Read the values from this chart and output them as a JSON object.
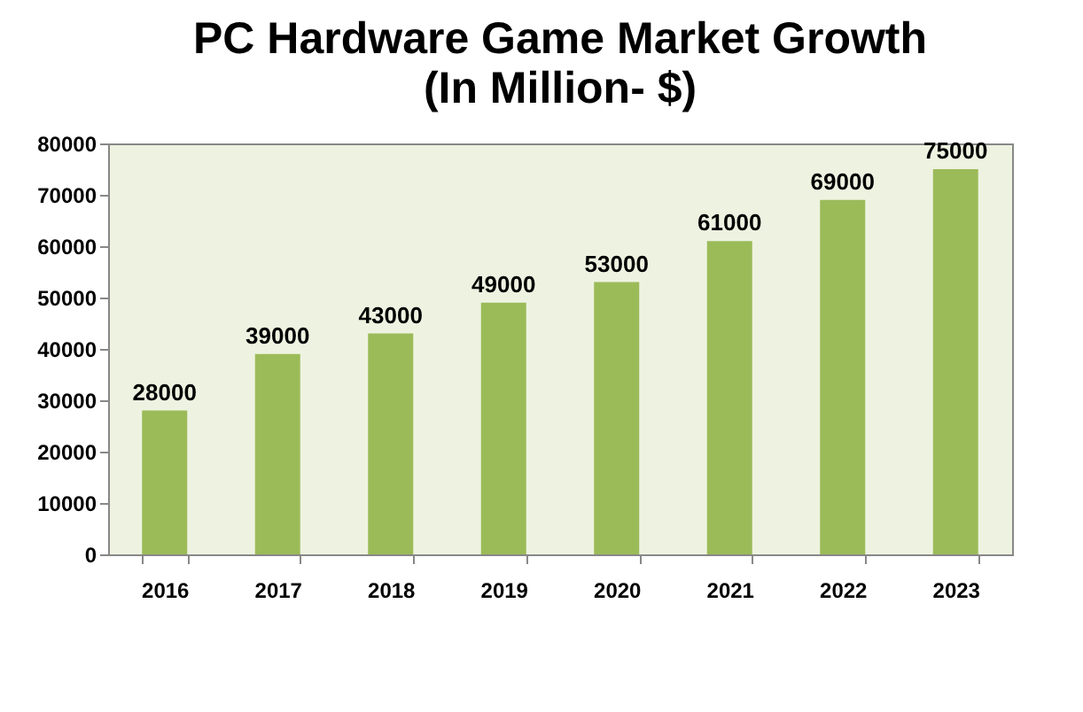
{
  "chart_data": {
    "type": "bar",
    "title": "PC Hardware Game Market Growth",
    "subtitle": "(In Million- $)",
    "categories": [
      "2016",
      "2017",
      "2018",
      "2019",
      "2020",
      "2021",
      "2022",
      "2023"
    ],
    "values": [
      28000,
      39000,
      43000,
      49000,
      53000,
      61000,
      69000,
      75000
    ],
    "color": "#9bbb59",
    "ylim": [
      0,
      80000
    ],
    "yticks": [
      0,
      10000,
      20000,
      30000,
      40000,
      50000,
      60000,
      70000,
      80000
    ],
    "grid": false,
    "data_labels": true
  }
}
